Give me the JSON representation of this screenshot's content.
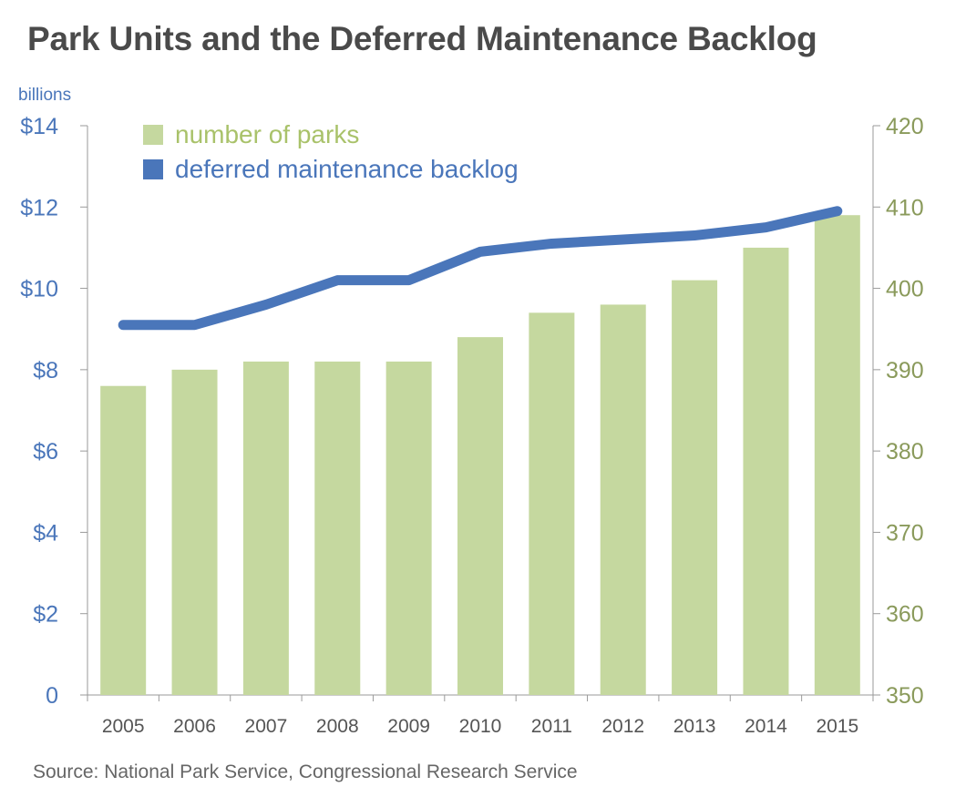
{
  "chart_data": {
    "type": "bar",
    "title": "Park Units and the Deferred Maintenance Backlog",
    "source": "Source: National Park Service, Congressional Research Service",
    "categories": [
      "2005",
      "2006",
      "2007",
      "2008",
      "2009",
      "2010",
      "2011",
      "2012",
      "2013",
      "2014",
      "2015"
    ],
    "left_axis": {
      "unit_label": "billions",
      "range": [
        0,
        14
      ],
      "ticks": [
        0,
        2,
        4,
        6,
        8,
        10,
        12,
        14
      ],
      "tick_labels": [
        "0",
        "$2",
        "$4",
        "$6",
        "$8",
        "$10",
        "$12",
        "$14"
      ]
    },
    "right_axis": {
      "range": [
        350,
        420
      ],
      "ticks": [
        350,
        360,
        370,
        380,
        390,
        400,
        410,
        420
      ],
      "tick_labels": [
        "350",
        "360",
        "370",
        "380",
        "390",
        "400",
        "410",
        "420"
      ]
    },
    "series": [
      {
        "name": "number of parks",
        "type": "bar",
        "axis": "right",
        "color": "#c5d89f",
        "values": [
          388,
          390,
          391,
          391,
          391,
          394,
          397,
          398,
          401,
          405,
          409
        ]
      },
      {
        "name": "deferred maintenance backlog",
        "type": "line",
        "axis": "left",
        "color": "#4a76ba",
        "values": [
          9.1,
          9.1,
          9.6,
          10.2,
          10.2,
          10.9,
          11.1,
          11.2,
          11.3,
          11.5,
          11.9
        ]
      }
    ],
    "legend_position": "top-left",
    "grid": false,
    "left_axis_color": "#4a76ba",
    "right_axis_color": "#8a9a5b"
  }
}
